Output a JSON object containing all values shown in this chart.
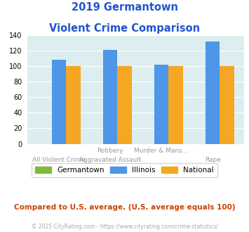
{
  "title_line1": "2019 Germantown",
  "title_line2": "Violent Crime Comparison",
  "x_labels_top": [
    "",
    "Robbery",
    "Murder & Mans...",
    ""
  ],
  "x_labels_bottom": [
    "All Violent Crime",
    "Aggravated Assault",
    "",
    "Rape"
  ],
  "germantown": [
    0,
    0,
    0,
    0
  ],
  "illinois": [
    108,
    121,
    102,
    131
  ],
  "national": [
    100,
    100,
    100,
    100
  ],
  "bar_color_germantown": "#7cba3c",
  "bar_color_illinois": "#4d96e8",
  "bar_color_national": "#f5a623",
  "ylim": [
    0,
    140
  ],
  "yticks": [
    0,
    20,
    40,
    60,
    80,
    100,
    120,
    140
  ],
  "title_color": "#2255cc",
  "axis_bg_color": "#dceef0",
  "fig_bg_color": "#ffffff",
  "legend_labels": [
    "Germantown",
    "Illinois",
    "National"
  ],
  "footer_text": "Compared to U.S. average. (U.S. average equals 100)",
  "copyright_text": "© 2025 CityRating.com - https://www.cityrating.com/crime-statistics/",
  "footer_color": "#cc4400",
  "copyright_color": "#aaaaaa",
  "label_color": "#999999"
}
